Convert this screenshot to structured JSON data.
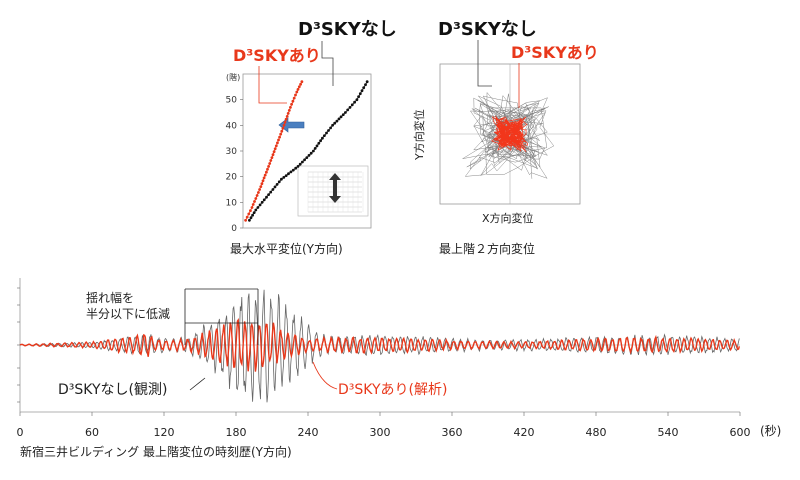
{
  "chart_data": [
    {
      "id": "max_disp",
      "type": "scatter",
      "caption": "最大水平変位(Y方向)",
      "ylabel": "(階)",
      "yticks": [
        0,
        10,
        20,
        30,
        40,
        50
      ],
      "ylim": [
        0,
        60
      ],
      "xlim": [
        0,
        1
      ],
      "legend_with": "D³SKYあり",
      "legend_without": "D³SKYなし",
      "series": [
        {
          "name": "D³SKYあり",
          "color": "#e8381b",
          "x": [
            0.02,
            0.07,
            0.13,
            0.2,
            0.26,
            0.32,
            0.37,
            0.42,
            0.46
          ],
          "y": [
            3,
            8,
            15,
            24,
            32,
            40,
            47,
            53,
            57
          ]
        },
        {
          "name": "D³SKYなし",
          "color": "#111111",
          "x": [
            0.05,
            0.1,
            0.2,
            0.3,
            0.43,
            0.55,
            0.62,
            0.7,
            0.8,
            0.89,
            0.97
          ],
          "y": [
            3,
            7,
            13,
            19,
            24,
            30,
            35,
            40,
            45,
            50,
            57
          ]
        }
      ]
    },
    {
      "id": "orbit",
      "type": "scatter",
      "caption": "最上階２方向変位",
      "xlabel": "X方向変位",
      "ylabel": "Y方向変位",
      "legend_with": "D³SKYあり",
      "legend_without": "D³SKYなし"
    },
    {
      "id": "time_history",
      "type": "line",
      "caption": "新宿三井ビルディング 最上階変位の時刻歴(Y方向)",
      "xunit": "(秒)",
      "xticks": [
        0,
        60,
        120,
        180,
        240,
        300,
        360,
        420,
        480,
        540,
        600
      ],
      "xlim": [
        0,
        600
      ],
      "series": [
        {
          "name": "D³SKYなし(観測)",
          "color": "#555555"
        },
        {
          "name": "D³SKYあり(解析)",
          "color": "#e8381b"
        }
      ],
      "annotation": [
        "揺れ幅を",
        "半分以下に低減"
      ]
    }
  ]
}
